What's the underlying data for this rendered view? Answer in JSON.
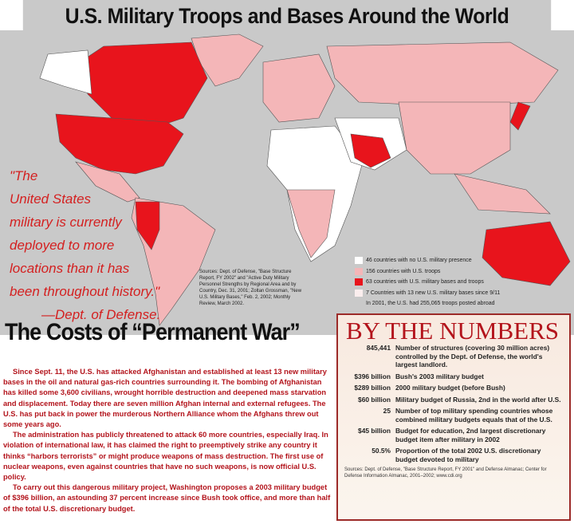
{
  "title": "U.S. Military Troops and Bases Around the World",
  "quote": {
    "lines": [
      "\"The",
      "United States",
      "military is currently",
      "deployed to more",
      "locations than it has",
      "been throughout history.\""
    ],
    "attribution": "—Dept. of Defense."
  },
  "map_sources": "Sources: Dept. of Defense, \"Base Structure Report, FY 2002\" and \"Active Duty Military Personnel Strengths by Regional Area and by Country, Dec. 31, 2001; Zoltan Grossman, \"New U.S. Military Bases,\" Feb. 2, 2002; Monthly Review, March 2002.",
  "colors": {
    "no_presence": "#ffffff",
    "troops": "#f4b6b8",
    "bases": "#e8141c",
    "new_bases": "#fbeeee",
    "background": "#c9c9c9",
    "accent": "#b3141c"
  },
  "legend": [
    {
      "label": "46 countries with no U.S. military presence",
      "color": "#ffffff"
    },
    {
      "label": "156 countries with U.S. troops",
      "color": "#f4b6b8"
    },
    {
      "label": "63 countries with U.S. military bases and troops",
      "color": "#e8141c"
    },
    {
      "label": "7 Countries with 13 new U.S. military bases since 9/11",
      "color": "#fbeeee"
    },
    {
      "label": "In 2001, the U.S. had 255,065 troops posted abroad",
      "color": ""
    }
  ],
  "costs": {
    "heading": "The Costs of “Permanent War”",
    "paragraphs": [
      "Since Sept. 11, the U.S. has attacked Afghanistan and established at least 13 new military bases in the oil and natural gas-rich countries surrounding it. The bombing of Afghanistan has killed some 3,600 civilians, wrought horrible destruction and deepened mass starvation and displacement. Today there are seven million Afghan internal and external refugees. The U.S. has put back in power the murderous Northern Alliance whom the Afghans threw out some years ago.",
      "The administration has publicly threatened to attack 60 more countries, especially Iraq. In violation of international law, it has claimed the right to preemptively strike any country it thinks “harbors terrorists” or might produce weapons of mass destruction. The first use of nuclear weapons, even against countries that have no such weapons, is now official U.S. policy.",
      "To carry out this dangerous military project, Washington proposes a 2003 military budget of $396 billion, an astounding 37 percent increase since Bush took office, and more than half of the total U.S. discretionary budget."
    ]
  },
  "numbers": {
    "heading": "BY THE NUMBERS",
    "rows": [
      {
        "value": "845,441",
        "text": "Number of structures (covering 30 million acres) controlled by the Dept. of Defense, the world's largest landlord."
      },
      {
        "value": "$396 billion",
        "text": "Bush's 2003 military budget"
      },
      {
        "value": "$289 billion",
        "text": "2000 military budget (before Bush)"
      },
      {
        "value": "$60 billion",
        "text": "Military budget of Russia, 2nd in the world after U.S."
      },
      {
        "value": "25",
        "text": "Number of top military spending countries whose combined military budgets equals that of the U.S."
      },
      {
        "value": "$45 billion",
        "text": "Budget for education, 2nd largest discretionary budget item after military in 2002"
      },
      {
        "value": "50.5%",
        "text": "Proportion of the total 2002 U.S. discretionary budget devoted to military"
      }
    ],
    "sources": "Sources: Dept. of Defense, \"Base Structure Report, FY 2001\" and Defense Almanac; Center for Defense Information Almanac, 2001–2002; www.cdi.org"
  }
}
